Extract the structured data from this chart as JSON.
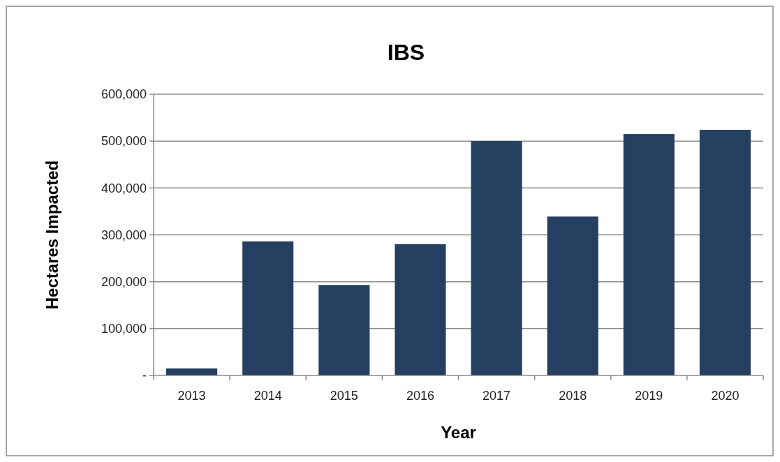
{
  "chart_data": {
    "type": "bar",
    "title": "IBS",
    "xlabel": "Year",
    "ylabel": "Hectares Impacted",
    "categories": [
      "2013",
      "2014",
      "2015",
      "2016",
      "2017",
      "2018",
      "2019",
      "2020"
    ],
    "values": [
      15000,
      286000,
      193000,
      280000,
      500000,
      339000,
      515000,
      524000
    ],
    "color": "#243f60",
    "ylim": [
      0,
      600000
    ],
    "yticks": [
      {
        "value": 0,
        "label": "-"
      },
      {
        "value": 100000,
        "label": "100,000"
      },
      {
        "value": 200000,
        "label": "200,000"
      },
      {
        "value": 300000,
        "label": "300,000"
      },
      {
        "value": 400000,
        "label": "400,000"
      },
      {
        "value": 500000,
        "label": "500,000"
      },
      {
        "value": 600000,
        "label": "600,000"
      }
    ],
    "grid": "y"
  }
}
